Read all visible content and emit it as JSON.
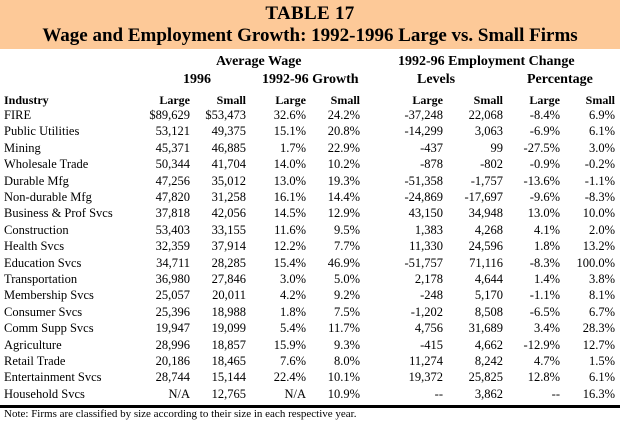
{
  "title": {
    "table_number": "TABLE 17",
    "subtitle": "Wage and Employment Growth:  1992-1996 Large vs. Small Firms",
    "banner_color": "#fdc998"
  },
  "headers": {
    "group1": "Average Wage",
    "group2": "1992-96 Employment Change",
    "sub1": "1996",
    "sub2": "1992-96 Growth",
    "sub3": "Levels",
    "sub4": "Percentage",
    "industry": "Industry",
    "cols": [
      "Large",
      "Small",
      "Large",
      "Small",
      "Large",
      "Small",
      "Large",
      "Small"
    ]
  },
  "rows": [
    {
      "industry": "FIRE",
      "wage_large": "$89,629",
      "wage_small": "$53,473",
      "growth_large": "32.6%",
      "growth_small": "24.2%",
      "lvl_large": "-37,248",
      "lvl_small": "22,068",
      "pct_large": "-8.4%",
      "pct_small": "6.9%"
    },
    {
      "industry": "Public Utilities",
      "wage_large": "53,121",
      "wage_small": "49,375",
      "growth_large": "15.1%",
      "growth_small": "20.8%",
      "lvl_large": "-14,299",
      "lvl_small": "3,063",
      "pct_large": "-6.9%",
      "pct_small": "6.1%"
    },
    {
      "industry": "Mining",
      "wage_large": "45,371",
      "wage_small": "46,885",
      "growth_large": "1.7%",
      "growth_small": "22.9%",
      "lvl_large": "-437",
      "lvl_small": "99",
      "pct_large": "-27.5%",
      "pct_small": "3.0%"
    },
    {
      "industry": "Wholesale Trade",
      "wage_large": "50,344",
      "wage_small": "41,704",
      "growth_large": "14.0%",
      "growth_small": "10.2%",
      "lvl_large": "-878",
      "lvl_small": "-802",
      "pct_large": "-0.9%",
      "pct_small": "-0.2%"
    },
    {
      "industry": "Durable Mfg",
      "wage_large": "47,256",
      "wage_small": "35,012",
      "growth_large": "13.0%",
      "growth_small": "19.3%",
      "lvl_large": "-51,358",
      "lvl_small": "-1,757",
      "pct_large": "-13.6%",
      "pct_small": "-1.1%"
    },
    {
      "industry": "Non-durable Mfg",
      "wage_large": "47,820",
      "wage_small": "31,258",
      "growth_large": "16.1%",
      "growth_small": "14.4%",
      "lvl_large": "-24,869",
      "lvl_small": "-17,697",
      "pct_large": "-9.6%",
      "pct_small": "-8.3%"
    },
    {
      "industry": "Business & Prof Svcs",
      "wage_large": "37,818",
      "wage_small": "42,056",
      "growth_large": "14.5%",
      "growth_small": "12.9%",
      "lvl_large": "43,150",
      "lvl_small": "34,948",
      "pct_large": "13.0%",
      "pct_small": "10.0%"
    },
    {
      "industry": "Construction",
      "wage_large": "53,403",
      "wage_small": "33,155",
      "growth_large": "11.6%",
      "growth_small": "9.5%",
      "lvl_large": "1,383",
      "lvl_small": "4,268",
      "pct_large": "4.1%",
      "pct_small": "2.0%"
    },
    {
      "industry": "Health Svcs",
      "wage_large": "32,359",
      "wage_small": "37,914",
      "growth_large": "12.2%",
      "growth_small": "7.7%",
      "lvl_large": "11,330",
      "lvl_small": "24,596",
      "pct_large": "1.8%",
      "pct_small": "13.2%"
    },
    {
      "industry": "Education Svcs",
      "wage_large": "34,711",
      "wage_small": "28,285",
      "growth_large": "15.4%",
      "growth_small": "46.9%",
      "lvl_large": "-51,757",
      "lvl_small": "71,116",
      "pct_large": "-8.3%",
      "pct_small": "100.0%"
    },
    {
      "industry": "Transportation",
      "wage_large": "36,980",
      "wage_small": "27,846",
      "growth_large": "3.0%",
      "growth_small": "5.0%",
      "lvl_large": "2,178",
      "lvl_small": "4,644",
      "pct_large": "1.4%",
      "pct_small": "3.8%"
    },
    {
      "industry": "Membership Svcs",
      "wage_large": "25,057",
      "wage_small": "20,011",
      "growth_large": "4.2%",
      "growth_small": "9.2%",
      "lvl_large": "-248",
      "lvl_small": "5,170",
      "pct_large": "-1.1%",
      "pct_small": "8.1%"
    },
    {
      "industry": "Consumer Svcs",
      "wage_large": "25,396",
      "wage_small": "18,988",
      "growth_large": "1.8%",
      "growth_small": "7.5%",
      "lvl_large": "-1,202",
      "lvl_small": "8,508",
      "pct_large": "-6.5%",
      "pct_small": "6.7%"
    },
    {
      "industry": "Comm Supp Svcs",
      "wage_large": "19,947",
      "wage_small": "19,099",
      "growth_large": "5.4%",
      "growth_small": "11.7%",
      "lvl_large": "4,756",
      "lvl_small": "31,689",
      "pct_large": "3.4%",
      "pct_small": "28.3%"
    },
    {
      "industry": "Agriculture",
      "wage_large": "28,996",
      "wage_small": "18,857",
      "growth_large": "15.9%",
      "growth_small": "9.3%",
      "lvl_large": "-415",
      "lvl_small": "4,662",
      "pct_large": "-12.9%",
      "pct_small": "12.7%"
    },
    {
      "industry": "Retail Trade",
      "wage_large": "20,186",
      "wage_small": "18,465",
      "growth_large": "7.6%",
      "growth_small": "8.0%",
      "lvl_large": "11,274",
      "lvl_small": "8,242",
      "pct_large": "4.7%",
      "pct_small": "1.5%"
    },
    {
      "industry": "Entertainment Svcs",
      "wage_large": "28,744",
      "wage_small": "15,144",
      "growth_large": "22.4%",
      "growth_small": "10.1%",
      "lvl_large": "19,372",
      "lvl_small": "25,825",
      "pct_large": "12.8%",
      "pct_small": "6.1%"
    },
    {
      "industry": "Household Svcs",
      "wage_large": "N/A",
      "wage_small": "12,765",
      "growth_large": "N/A",
      "growth_small": "10.9%",
      "lvl_large": "--",
      "lvl_small": "3,862",
      "pct_large": "--",
      "pct_small": "16.3%"
    }
  ],
  "note": "Note:  Firms are classified by size according to their size in each respective year."
}
